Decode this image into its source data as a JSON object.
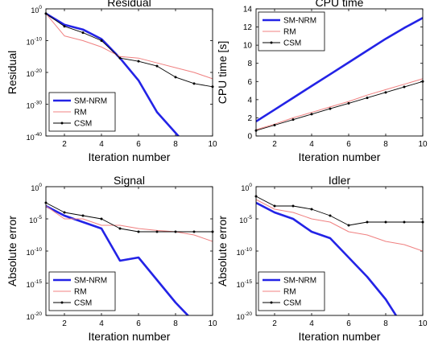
{
  "colors": {
    "smnrm": "#2323e6",
    "rm": "#f08080",
    "csm": "#000000"
  },
  "chart_data": [
    {
      "type": "line",
      "title": "Residual",
      "xlabel": "Iteration number",
      "ylabel": "Residual",
      "yscale": "log",
      "xlim": [
        1,
        10
      ],
      "ylim_exp": [
        -40,
        0
      ],
      "xticks": [
        "2",
        "4",
        "6",
        "8",
        "10"
      ],
      "yticks": [
        {
          "base": "10",
          "exp": "0",
          "pow": 0
        },
        {
          "base": "10",
          "exp": "-10",
          "pow": -10
        },
        {
          "base": "10",
          "exp": "-20",
          "pow": -20
        },
        {
          "base": "10",
          "exp": "-30",
          "pow": -30
        },
        {
          "base": "10",
          "exp": "-40",
          "pow": -40
        }
      ],
      "legend_position": "bottom-left",
      "x": [
        1,
        2,
        3,
        4,
        5,
        6,
        7,
        8,
        9,
        10
      ],
      "series": [
        {
          "name": "SM-NRM",
          "key": "smnrm",
          "log10": [
            -1.5,
            -5,
            -6.5,
            -9.5,
            -15.5,
            -22.5,
            -32.5,
            -39,
            -45.5,
            -45.5
          ]
        },
        {
          "name": "RM",
          "key": "rm",
          "log10": [
            -1.5,
            -8.5,
            -10,
            -12,
            -15,
            -15.5,
            -17,
            -18.5,
            -20,
            -22
          ]
        },
        {
          "name": "CSM",
          "key": "csm",
          "log10": [
            -1.5,
            -5.5,
            -7.5,
            -10,
            -15.5,
            -16.5,
            -18,
            -21.5,
            -23.5,
            -24.5
          ]
        }
      ]
    },
    {
      "type": "line",
      "title": "CPU time",
      "xlabel": "Iteration number",
      "ylabel": "CPU time [s]",
      "yscale": "linear",
      "xlim": [
        1,
        10
      ],
      "ylim": [
        0,
        14
      ],
      "xticks": [
        "2",
        "4",
        "6",
        "8",
        "10"
      ],
      "yticks": [
        "0",
        "2",
        "4",
        "6",
        "8",
        "10",
        "12",
        "14"
      ],
      "legend_position": "top-left",
      "x": [
        1,
        2,
        3,
        4,
        5,
        6,
        7,
        8,
        9,
        10
      ],
      "series": [
        {
          "name": "SM-NRM",
          "key": "smnrm",
          "values": [
            1.6,
            2.9,
            4.2,
            5.5,
            6.8,
            8.1,
            9.4,
            10.7,
            11.9,
            13.0
          ]
        },
        {
          "name": "RM",
          "key": "rm",
          "values": [
            0.7,
            1.3,
            2.0,
            2.6,
            3.2,
            3.8,
            4.5,
            5.1,
            5.7,
            6.3
          ]
        },
        {
          "name": "CSM",
          "key": "csm",
          "values": [
            0.6,
            1.2,
            1.8,
            2.4,
            3.0,
            3.6,
            4.2,
            4.8,
            5.4,
            6.0
          ]
        }
      ]
    },
    {
      "type": "line",
      "title": "Signal",
      "xlabel": "Iteration number",
      "ylabel": "Absolute error",
      "yscale": "log",
      "xlim": [
        1,
        10
      ],
      "ylim_exp": [
        -20,
        0
      ],
      "xticks": [
        "2",
        "4",
        "6",
        "8",
        "10"
      ],
      "yticks": [
        {
          "base": "10",
          "exp": "0",
          "pow": 0
        },
        {
          "base": "10",
          "exp": "-5",
          "pow": -5
        },
        {
          "base": "10",
          "exp": "-10",
          "pow": -10
        },
        {
          "base": "10",
          "exp": "-15",
          "pow": -15
        },
        {
          "base": "10",
          "exp": "-20",
          "pow": -20
        }
      ],
      "legend_position": "bottom-left",
      "x": [
        1,
        2,
        3,
        4,
        5,
        6,
        7,
        8,
        9,
        10
      ],
      "series": [
        {
          "name": "SM-NRM",
          "key": "smnrm",
          "log10": [
            -3.0,
            -4.5,
            -5.5,
            -6.5,
            -11.5,
            -11.0,
            -14.5,
            -18.0,
            -21.0,
            -22.0
          ]
        },
        {
          "name": "RM",
          "key": "rm",
          "log10": [
            -3.0,
            -5.0,
            -5.0,
            -6.0,
            -6.0,
            -6.5,
            -6.8,
            -7.0,
            -7.5,
            -8.5
          ]
        },
        {
          "name": "CSM",
          "key": "csm",
          "log10": [
            -2.5,
            -4.0,
            -4.5,
            -5.0,
            -6.5,
            -7.0,
            -7.0,
            -7.0,
            -7.0,
            -7.0
          ]
        }
      ]
    },
    {
      "type": "line",
      "title": "Idler",
      "xlabel": "Iteration number",
      "ylabel": "Absolute error",
      "yscale": "log",
      "xlim": [
        1,
        10
      ],
      "ylim_exp": [
        -20,
        0
      ],
      "xticks": [
        "2",
        "4",
        "6",
        "8",
        "10"
      ],
      "yticks": [
        {
          "base": "10",
          "exp": "0",
          "pow": 0
        },
        {
          "base": "10",
          "exp": "-5",
          "pow": -5
        },
        {
          "base": "10",
          "exp": "-10",
          "pow": -10
        },
        {
          "base": "10",
          "exp": "-15",
          "pow": -15
        },
        {
          "base": "10",
          "exp": "-20",
          "pow": -20
        }
      ],
      "legend_position": "bottom-left",
      "x": [
        1,
        2,
        3,
        4,
        5,
        6,
        7,
        8,
        9,
        10
      ],
      "series": [
        {
          "name": "SM-NRM",
          "key": "smnrm",
          "log10": [
            -2.5,
            -4.0,
            -5.0,
            -7.0,
            -8.0,
            -11.0,
            -14.0,
            -17.5,
            -22.0,
            -22.5
          ]
        },
        {
          "name": "RM",
          "key": "rm",
          "log10": [
            -2.0,
            -3.5,
            -4.0,
            -5.0,
            -5.5,
            -7.0,
            -7.5,
            -8.5,
            -9.0,
            -10.0
          ]
        },
        {
          "name": "CSM",
          "key": "csm",
          "log10": [
            -1.5,
            -3.0,
            -3.0,
            -3.5,
            -4.5,
            -6.0,
            -5.5,
            -5.5,
            -5.5,
            -5.5
          ]
        }
      ]
    }
  ]
}
